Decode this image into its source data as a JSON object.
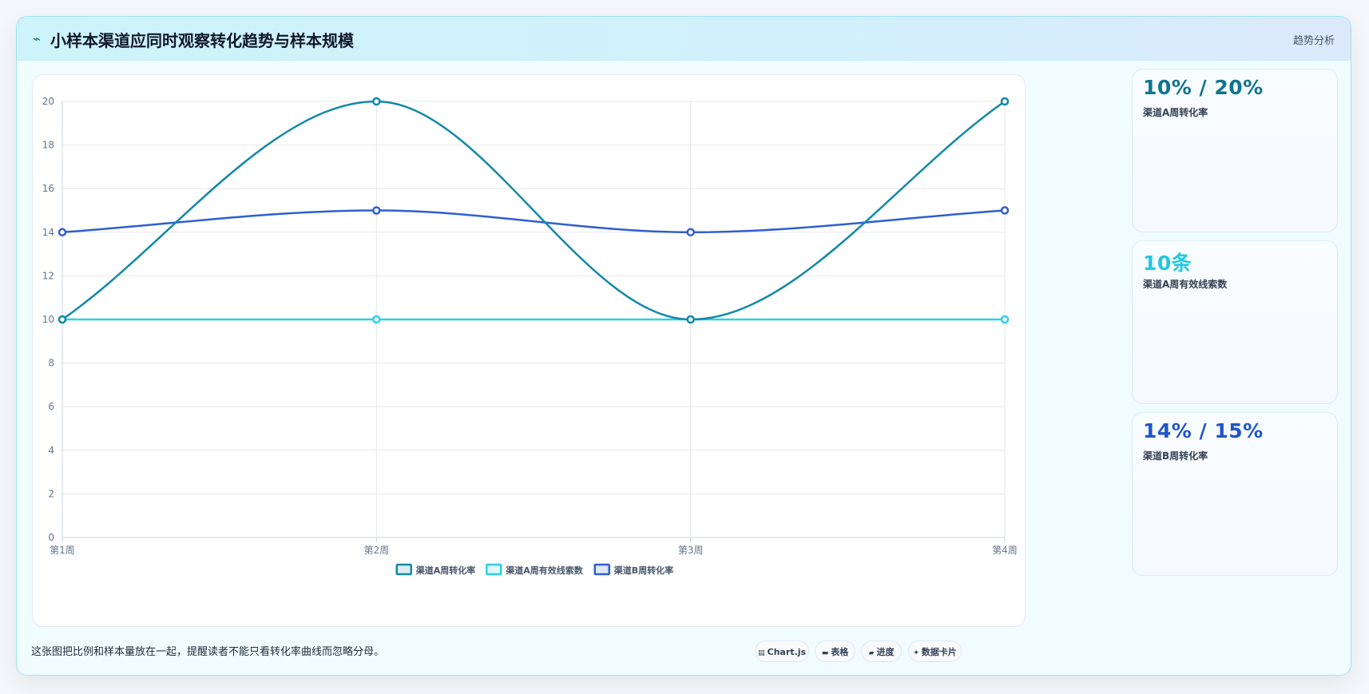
{
  "header": {
    "icon": "trend-icon",
    "title": "小样本渠道应同时观察转化趋势与样本规模",
    "tag": "趋势分析"
  },
  "stats": [
    {
      "value": "10% / 20%",
      "label": "渠道A周转化率",
      "color": "#0e7490"
    },
    {
      "value": "10条",
      "label": "渠道A周有效线索数",
      "color": "#22c7e0"
    },
    {
      "value": "14% / 15%",
      "label": "渠道B周转化率",
      "color": "#2156c9"
    }
  ],
  "caption": "这张图把比例和样本量放在一起，提醒读者不能只看转化率曲线而忽略分母。",
  "chips": [
    {
      "icon": "chart-icon",
      "glyph": "▤",
      "label": "Chart.js"
    },
    {
      "icon": "table-icon",
      "glyph": "▬",
      "label": "表格"
    },
    {
      "icon": "progress-icon",
      "glyph": "▰",
      "label": "进度"
    },
    {
      "icon": "card-icon",
      "glyph": "✦",
      "label": "数据卡片"
    }
  ],
  "chart_data": {
    "type": "line",
    "categories": [
      "第1周",
      "第2周",
      "第3周",
      "第4周"
    ],
    "ylim": [
      0,
      20
    ],
    "yticks": [
      0,
      2,
      4,
      6,
      8,
      10,
      12,
      14,
      16,
      18,
      20
    ],
    "grid": true,
    "legend_position": "bottom",
    "series": [
      {
        "name": "渠道A周转化率",
        "values": [
          10,
          20,
          10,
          20
        ],
        "color": "#1289a7"
      },
      {
        "name": "渠道A周有效线索数",
        "values": [
          10,
          10,
          10,
          10
        ],
        "color": "#2fd0e6"
      },
      {
        "name": "渠道B周转化率",
        "values": [
          14,
          15,
          14,
          15
        ],
        "color": "#2f5fcf"
      }
    ]
  }
}
